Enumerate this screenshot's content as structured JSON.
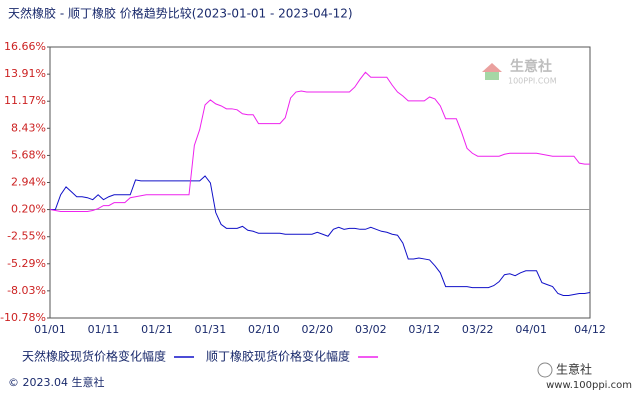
{
  "chart_data": {
    "type": "line",
    "title": "天然橡胶 - 顺丁橡胶 价格趋势比较(2023-01-01 - 2023-04-12)",
    "categories": [
      "01/01",
      null,
      null,
      null,
      null,
      null,
      null,
      null,
      null,
      null,
      "01/11",
      null,
      null,
      null,
      null,
      null,
      null,
      null,
      null,
      null,
      "01/21",
      null,
      null,
      null,
      null,
      null,
      null,
      null,
      null,
      null,
      "01/31",
      null,
      null,
      null,
      null,
      null,
      null,
      null,
      null,
      null,
      "02/10",
      null,
      null,
      null,
      null,
      null,
      null,
      null,
      null,
      null,
      "02/20",
      null,
      null,
      null,
      null,
      null,
      null,
      null,
      null,
      null,
      "03/02",
      null,
      null,
      null,
      null,
      null,
      null,
      null,
      null,
      null,
      "03/12",
      null,
      null,
      null,
      null,
      null,
      null,
      null,
      null,
      null,
      "03/22",
      null,
      null,
      null,
      null,
      null,
      null,
      null,
      null,
      null,
      "04/01",
      null,
      null,
      null,
      null,
      null,
      null,
      null,
      null,
      null,
      null,
      "04/12"
    ],
    "series": [
      {
        "name": "天然橡胶现货价格变化幅度",
        "color": "#1010c8",
        "values": [
          0.2,
          0.2,
          1.7,
          2.5,
          2.0,
          1.5,
          1.5,
          1.4,
          1.2,
          1.7,
          1.2,
          1.5,
          1.7,
          1.7,
          1.7,
          1.7,
          3.2,
          3.1,
          3.1,
          3.1,
          3.1,
          3.1,
          3.1,
          3.1,
          3.1,
          3.1,
          3.1,
          3.1,
          3.1,
          3.6,
          2.9,
          -0.1,
          -1.3,
          -1.7,
          -1.7,
          -1.7,
          -1.5,
          -1.9,
          -2.0,
          -2.2,
          -2.2,
          -2.2,
          -2.2,
          -2.2,
          -2.3,
          -2.3,
          -2.3,
          -2.3,
          -2.3,
          -2.3,
          -2.1,
          -2.3,
          -2.5,
          -1.8,
          -1.6,
          -1.8,
          -1.7,
          -1.7,
          -1.8,
          -1.8,
          -1.6,
          -1.8,
          -2.0,
          -2.1,
          -2.3,
          -2.4,
          -3.2,
          -4.8,
          -4.8,
          -4.7,
          -4.8,
          -4.9,
          -5.5,
          -6.2,
          -7.6,
          -7.6,
          -7.6,
          -7.6,
          -7.6,
          -7.7,
          -7.7,
          -7.7,
          -7.7,
          -7.5,
          -7.1,
          -6.4,
          -6.3,
          -6.5,
          -6.2,
          -6.0,
          -6.0,
          -6.0,
          -7.2,
          -7.4,
          -7.6,
          -8.3,
          -8.5,
          -8.5,
          -8.4,
          -8.3,
          -8.3,
          -8.2
        ]
      },
      {
        "name": "顺丁橡胶现货价格变化幅度",
        "color": "#ee22ee",
        "values": [
          0.2,
          0.1,
          0.0,
          0.0,
          0.0,
          0.0,
          0.0,
          0.0,
          0.1,
          0.3,
          0.6,
          0.6,
          0.9,
          0.9,
          0.9,
          1.4,
          1.5,
          1.6,
          1.7,
          1.7,
          1.7,
          1.7,
          1.7,
          1.7,
          1.7,
          1.7,
          1.7,
          6.7,
          8.3,
          10.8,
          11.3,
          10.9,
          10.7,
          10.4,
          10.4,
          10.3,
          9.9,
          9.8,
          9.8,
          8.9,
          8.9,
          8.9,
          8.9,
          8.9,
          9.5,
          11.5,
          12.1,
          12.2,
          12.1,
          12.1,
          12.1,
          12.1,
          12.1,
          12.1,
          12.1,
          12.1,
          12.1,
          12.6,
          13.4,
          14.1,
          13.6,
          13.6,
          13.6,
          13.6,
          12.8,
          12.1,
          11.7,
          11.2,
          11.2,
          11.2,
          11.2,
          11.6,
          11.4,
          10.7,
          9.4,
          9.4,
          9.4,
          8.0,
          6.4,
          5.9,
          5.6,
          5.6,
          5.6,
          5.6,
          5.6,
          5.8,
          5.9,
          5.9,
          5.9,
          5.9,
          5.9,
          5.9,
          5.8,
          5.7,
          5.6,
          5.6,
          5.6,
          5.6,
          5.6,
          4.9,
          4.8,
          4.8
        ]
      }
    ],
    "ylim": [
      -10.78,
      16.66
    ],
    "yticks": [
      {
        "value": 16.66,
        "label": "16.66%"
      },
      {
        "value": 13.91,
        "label": "13.91%"
      },
      {
        "value": 11.17,
        "label": "11.17%"
      },
      {
        "value": 8.43,
        "label": "8.43%"
      },
      {
        "value": 5.68,
        "label": "5.68%"
      },
      {
        "value": 2.94,
        "label": "2.94%"
      },
      {
        "value": 0.2,
        "label": "0.20%"
      },
      {
        "value": -2.55,
        "label": "-2.55%"
      },
      {
        "value": -5.29,
        "label": "-5.29%"
      },
      {
        "value": -8.03,
        "label": "-8.03%"
      },
      {
        "value": -10.78,
        "label": "-10.78%"
      }
    ],
    "grid": false,
    "legend": "bottom",
    "footer": "© 2023.04 生意社",
    "watermark": [
      "生意社",
      "100PPI.COM"
    ],
    "brand": [
      "生意社",
      "www.100ppi.com"
    ]
  }
}
